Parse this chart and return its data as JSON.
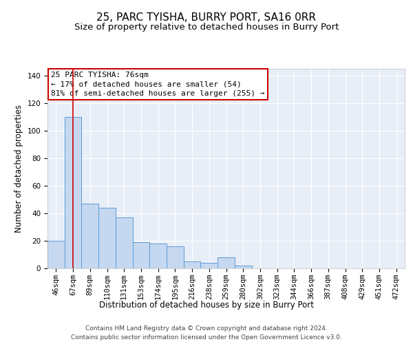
{
  "title": "25, PARC TYISHA, BURRY PORT, SA16 0RR",
  "subtitle": "Size of property relative to detached houses in Burry Port",
  "xlabel": "Distribution of detached houses by size in Burry Port",
  "ylabel": "Number of detached properties",
  "bar_labels": [
    "46sqm",
    "67sqm",
    "89sqm",
    "110sqm",
    "131sqm",
    "153sqm",
    "174sqm",
    "195sqm",
    "216sqm",
    "238sqm",
    "259sqm",
    "280sqm",
    "302sqm",
    "323sqm",
    "344sqm",
    "366sqm",
    "387sqm",
    "408sqm",
    "429sqm",
    "451sqm",
    "472sqm"
  ],
  "bar_values": [
    20,
    110,
    47,
    44,
    37,
    19,
    18,
    16,
    5,
    4,
    8,
    2,
    0,
    0,
    0,
    0,
    0,
    0,
    0,
    0,
    0
  ],
  "bar_color": "#c5d8f0",
  "bar_edge_color": "#5b9bd5",
  "background_color": "#e8eef7",
  "grid_color": "#ffffff",
  "red_line_x": 1.0,
  "red_line_color": "#cc0000",
  "annotation_text": "25 PARC TYISHA: 76sqm\n← 17% of detached houses are smaller (54)\n81% of semi-detached houses are larger (255) →",
  "annotation_box_color": "#ffffff",
  "annotation_box_edge": "#cc0000",
  "ylim": [
    0,
    145
  ],
  "yticks": [
    0,
    20,
    40,
    60,
    80,
    100,
    120,
    140
  ],
  "footer_line1": "Contains HM Land Registry data © Crown copyright and database right 2024.",
  "footer_line2": "Contains public sector information licensed under the Open Government Licence v3.0.",
  "title_fontsize": 11,
  "subtitle_fontsize": 9.5,
  "axis_label_fontsize": 8.5,
  "tick_fontsize": 7.5,
  "annotation_fontsize": 8,
  "footer_fontsize": 6.5
}
